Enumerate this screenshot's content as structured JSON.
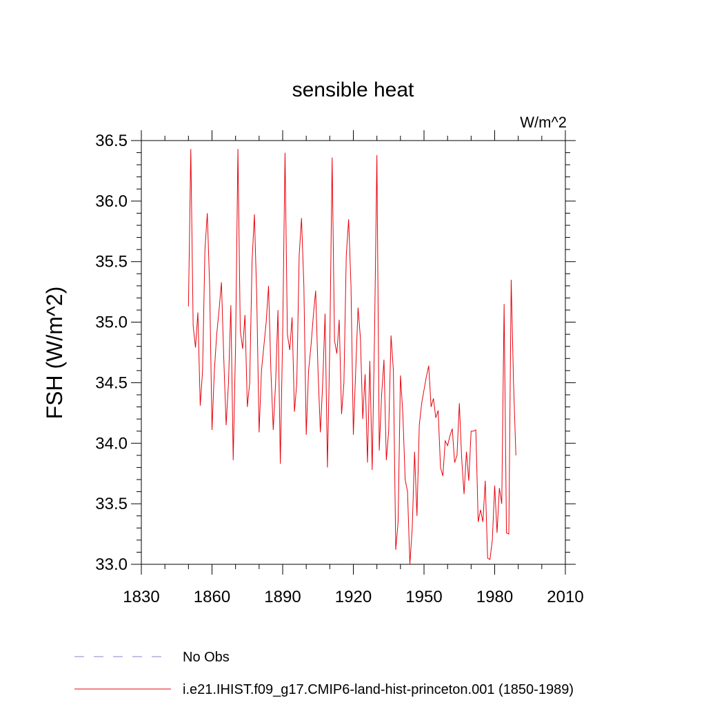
{
  "chart_data": {
    "type": "line",
    "title": "sensible heat",
    "units_label": "W/m^2",
    "y_label": "FSH  (W/m^2)",
    "x": [
      1850,
      1851,
      1852,
      1853,
      1854,
      1855,
      1856,
      1857,
      1858,
      1859,
      1860,
      1861,
      1862,
      1863,
      1864,
      1865,
      1866,
      1867,
      1868,
      1869,
      1870,
      1871,
      1872,
      1873,
      1874,
      1875,
      1876,
      1877,
      1878,
      1879,
      1880,
      1881,
      1882,
      1883,
      1884,
      1885,
      1886,
      1887,
      1888,
      1889,
      1890,
      1891,
      1892,
      1893,
      1894,
      1895,
      1896,
      1897,
      1898,
      1899,
      1900,
      1901,
      1902,
      1903,
      1904,
      1905,
      1906,
      1907,
      1908,
      1909,
      1910,
      1911,
      1912,
      1913,
      1914,
      1915,
      1916,
      1917,
      1918,
      1919,
      1920,
      1921,
      1922,
      1923,
      1924,
      1925,
      1926,
      1927,
      1928,
      1929,
      1930,
      1931,
      1932,
      1933,
      1934,
      1935,
      1936,
      1937,
      1938,
      1939,
      1940,
      1941,
      1942,
      1943,
      1944,
      1945,
      1946,
      1947,
      1948,
      1949,
      1950,
      1951,
      1952,
      1953,
      1954,
      1955,
      1956,
      1957,
      1958,
      1959,
      1960,
      1961,
      1962,
      1963,
      1964,
      1965,
      1966,
      1967,
      1968,
      1969,
      1970,
      1971,
      1972,
      1973,
      1974,
      1975,
      1976,
      1977,
      1978,
      1979,
      1980,
      1981,
      1982,
      1983,
      1984,
      1985,
      1986,
      1987,
      1988,
      1989
    ],
    "series": [
      {
        "name": "i.e21.IHIST.f09_g17.CMIP6-land-hist-princeton.001 (1850-1989)",
        "color": "#e8000b",
        "values": [
          35.13,
          36.43,
          34.97,
          34.79,
          35.08,
          34.31,
          34.6,
          35.6,
          35.9,
          35.3,
          34.11,
          34.6,
          34.9,
          35.1,
          35.33,
          34.7,
          34.15,
          34.5,
          35.14,
          33.86,
          34.8,
          36.43,
          34.93,
          34.78,
          35.06,
          34.3,
          34.5,
          35.5,
          35.89,
          35.2,
          34.09,
          34.6,
          34.8,
          35.0,
          35.3,
          34.6,
          34.11,
          34.5,
          35.1,
          33.83,
          34.9,
          36.4,
          34.9,
          34.77,
          35.04,
          34.26,
          34.5,
          35.55,
          35.86,
          35.3,
          34.07,
          34.6,
          34.8,
          35.05,
          35.26,
          34.6,
          34.09,
          34.5,
          35.07,
          33.8,
          34.8,
          36.36,
          34.85,
          34.74,
          35.02,
          34.24,
          34.5,
          35.55,
          35.85,
          35.3,
          34.07,
          34.6,
          35.12,
          34.87,
          34.2,
          34.57,
          33.84,
          34.68,
          33.78,
          34.9,
          36.38,
          33.94,
          34.4,
          34.69,
          33.86,
          34.1,
          34.89,
          34.6,
          33.12,
          33.35,
          34.56,
          34.25,
          33.7,
          33.6,
          33.0,
          33.3,
          33.93,
          33.4,
          34.15,
          34.33,
          34.44,
          34.55,
          34.64,
          34.3,
          34.37,
          34.21,
          34.27,
          33.8,
          33.73,
          34.02,
          33.98,
          34.06,
          34.12,
          33.84,
          33.9,
          34.33,
          33.87,
          33.58,
          33.93,
          33.69,
          34.1,
          34.1,
          34.11,
          33.35,
          33.45,
          33.35,
          33.69,
          33.05,
          33.04,
          33.2,
          33.65,
          33.26,
          33.63,
          33.5,
          35.15,
          33.26,
          33.25,
          35.35,
          34.5,
          33.9
        ]
      }
    ],
    "legend_items": [
      {
        "name": "No Obs",
        "color": "#8a80c8",
        "dash": true
      }
    ],
    "xlim": [
      1830,
      2010
    ],
    "xticks": [
      1830,
      1860,
      1890,
      1920,
      1950,
      1980,
      2010
    ],
    "xminorticks": [
      1840,
      1850,
      1870,
      1880,
      1900,
      1910,
      1930,
      1940,
      1960,
      1970,
      1990,
      2000
    ],
    "ylim": [
      33.0,
      36.5
    ],
    "yticks": [
      {
        "value": 33,
        "label": "33.0"
      },
      33.5,
      {
        "value": 34,
        "label": "34.0"
      },
      34.5,
      {
        "value": 35,
        "label": "35.0"
      },
      35.5,
      {
        "value": 36,
        "label": "36.0"
      },
      36.5
    ],
    "yminorticks": [
      33.1,
      33.2,
      33.3,
      33.4,
      33.6,
      33.7,
      33.8,
      33.9,
      34.1,
      34.2,
      34.3,
      34.4,
      34.6,
      34.7,
      34.8,
      34.9,
      35.1,
      35.2,
      35.3,
      35.4,
      35.6,
      35.7,
      35.8,
      35.9,
      36.1,
      36.2,
      36.3,
      36.4
    ]
  }
}
